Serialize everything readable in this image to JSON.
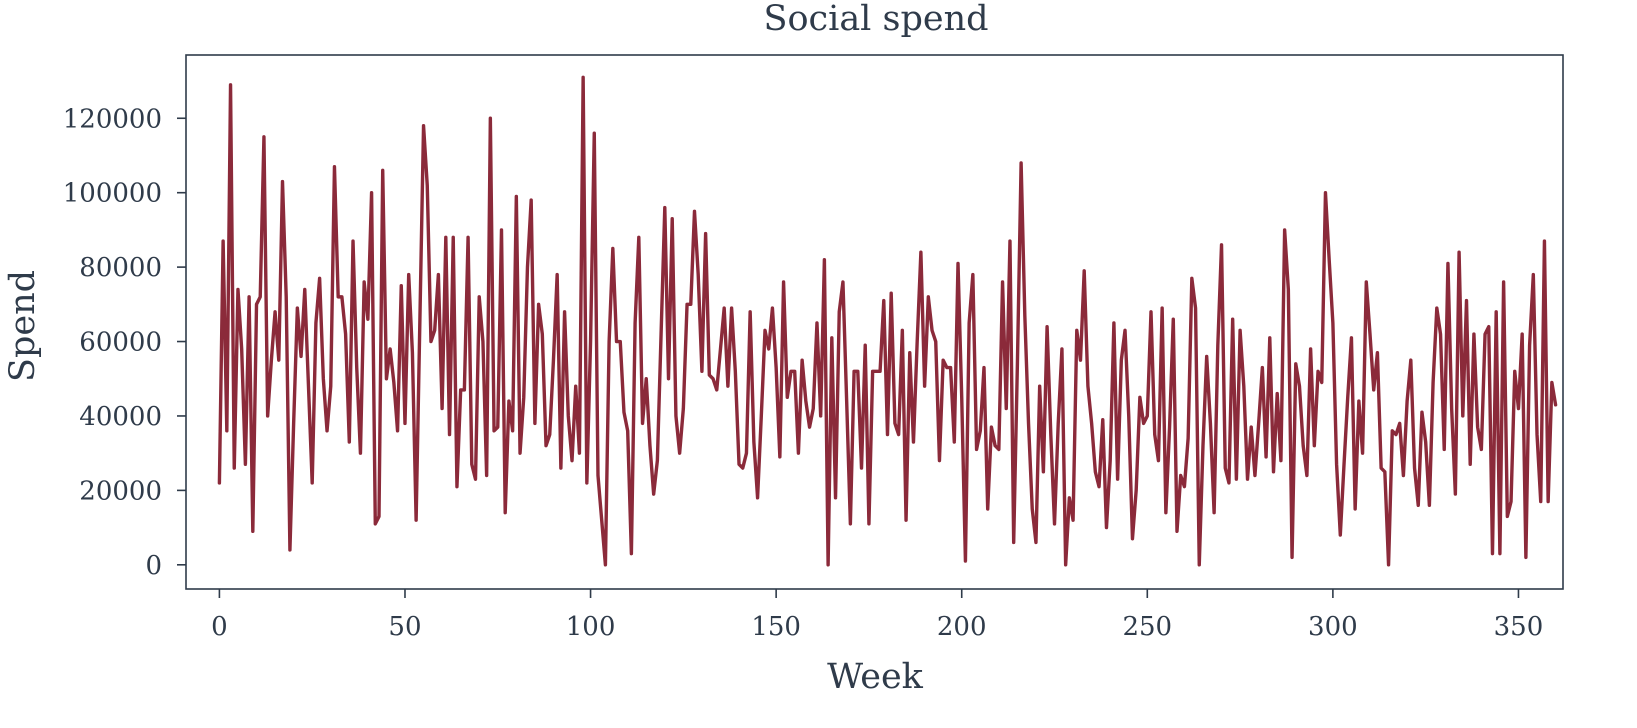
{
  "chart_data": {
    "type": "line",
    "title": "Social spend",
    "xlabel": "Week",
    "ylabel": "Spend",
    "xlim": [
      -9,
      362
    ],
    "ylim": [
      -6500,
      137000
    ],
    "xticks": [
      0,
      50,
      100,
      150,
      200,
      250,
      300,
      350
    ],
    "yticks": [
      0,
      20000,
      40000,
      60000,
      80000,
      100000,
      120000
    ],
    "xtick_labels": [
      "0",
      "50",
      "100",
      "150",
      "200",
      "250",
      "300",
      "350"
    ],
    "ytick_labels": [
      "0",
      "20000",
      "40000",
      "60000",
      "80000",
      "100000",
      "120000"
    ],
    "grid": false,
    "colors": {
      "series": "#8b2a3a",
      "axes": "#2f3b4a"
    },
    "series": [
      {
        "values": [
          22000,
          87000,
          36000,
          129000,
          26000,
          74000,
          58000,
          27000,
          72000,
          9000,
          70000,
          72000,
          115000,
          40000,
          55000,
          68000,
          55000,
          103000,
          72000,
          4000,
          38000,
          69000,
          56000,
          74000,
          48000,
          22000,
          65000,
          77000,
          50000,
          36000,
          48000,
          107000,
          72000,
          72000,
          62000,
          33000,
          87000,
          53000,
          30000,
          76000,
          66000,
          100000,
          11000,
          13000,
          106000,
          50000,
          58000,
          49000,
          36000,
          75000,
          38000,
          78000,
          57000,
          12000,
          65000,
          118000,
          102000,
          60000,
          63000,
          78000,
          42000,
          88000,
          35000,
          88000,
          21000,
          47000,
          47000,
          88000,
          27000,
          23000,
          72000,
          60000,
          24000,
          120000,
          36000,
          37000,
          90000,
          14000,
          44000,
          36000,
          99000,
          30000,
          45000,
          80000,
          98000,
          38000,
          70000,
          62000,
          32000,
          35000,
          55000,
          78000,
          26000,
          68000,
          40000,
          28000,
          48000,
          30000,
          131000,
          22000,
          60000,
          116000,
          24000,
          12000,
          0,
          60000,
          85000,
          60000,
          60000,
          41000,
          36000,
          3000,
          65000,
          88000,
          38000,
          50000,
          32000,
          19000,
          28000,
          62000,
          96000,
          50000,
          93000,
          40000,
          30000,
          42000,
          70000,
          70000,
          95000,
          78000,
          52000,
          89000,
          51000,
          50000,
          47000,
          58000,
          69000,
          48000,
          69000,
          52000,
          27000,
          26000,
          30000,
          68000,
          33000,
          18000,
          40000,
          63000,
          58000,
          69000,
          53000,
          29000,
          76000,
          45000,
          52000,
          52000,
          30000,
          55000,
          44000,
          37000,
          42000,
          65000,
          40000,
          82000,
          0,
          61000,
          18000,
          68000,
          76000,
          44000,
          11000,
          52000,
          52000,
          26000,
          59000,
          11000,
          52000,
          52000,
          52000,
          71000,
          35000,
          73000,
          38000,
          35000,
          63000,
          12000,
          57000,
          33000,
          60000,
          84000,
          48000,
          72000,
          63000,
          60000,
          28000,
          55000,
          53000,
          53000,
          33000,
          81000,
          45000,
          1000,
          65000,
          78000,
          31000,
          36000,
          53000,
          15000,
          37000,
          32000,
          31000,
          76000,
          42000,
          87000,
          6000,
          54000,
          108000,
          67000,
          38000,
          15000,
          6000,
          48000,
          25000,
          64000,
          35000,
          11000,
          38000,
          58000,
          0,
          18000,
          12000,
          63000,
          55000,
          79000,
          48000,
          38000,
          25000,
          21000,
          39000,
          10000,
          28000,
          65000,
          23000,
          55000,
          63000,
          40000,
          7000,
          20000,
          45000,
          38000,
          40000,
          68000,
          35000,
          28000,
          69000,
          14000,
          37000,
          66000,
          9000,
          24000,
          21000,
          34000,
          77000,
          69000,
          0,
          32000,
          56000,
          38000,
          14000,
          59000,
          86000,
          26000,
          22000,
          66000,
          23000,
          63000,
          48000,
          23000,
          37000,
          24000,
          38000,
          53000,
          29000,
          61000,
          25000,
          46000,
          28000,
          90000,
          74000,
          2000,
          54000,
          48000,
          32000,
          24000,
          58000,
          32000,
          52000,
          49000,
          100000,
          82000,
          65000,
          27000,
          8000,
          27000,
          45000,
          61000,
          15000,
          44000,
          30000,
          76000,
          62000,
          47000,
          57000,
          26000,
          25000,
          0,
          36000,
          35000,
          38000,
          24000,
          44000,
          55000,
          26000,
          16000,
          41000,
          33000,
          16000,
          49000,
          69000,
          62000,
          31000,
          81000,
          42000,
          19000,
          84000,
          40000,
          71000,
          27000,
          62000,
          37000,
          31000,
          62000,
          64000,
          3000,
          68000,
          3000,
          76000,
          13000,
          17000,
          52000,
          42000,
          62000,
          2000,
          59000,
          78000,
          35000,
          17000,
          87000,
          17000,
          49000,
          43000
        ]
      }
    ]
  }
}
